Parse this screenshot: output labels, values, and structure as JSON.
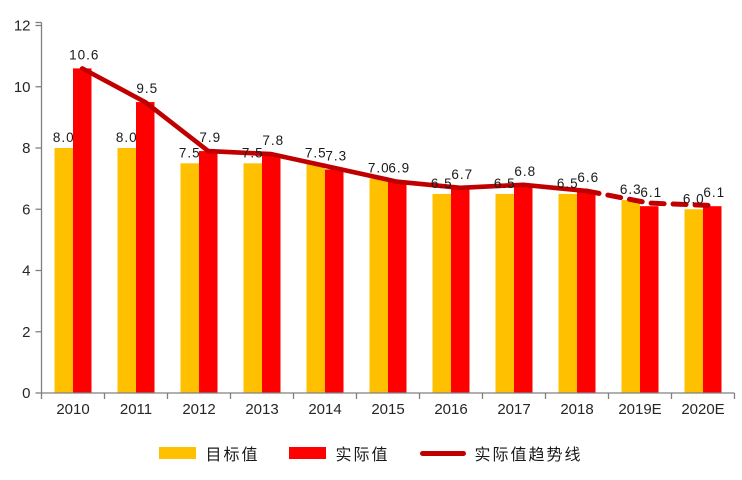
{
  "chart_data": {
    "type": "bar",
    "title": "",
    "categories": [
      "2010",
      "2011",
      "2012",
      "2013",
      "2014",
      "2015",
      "2016",
      "2017",
      "2018",
      "2019E",
      "2020E"
    ],
    "series": [
      {
        "name": "目标值",
        "color": "#FFC000",
        "values": [
          8.0,
          8.0,
          7.5,
          7.5,
          7.5,
          7.0,
          6.5,
          6.5,
          6.5,
          6.3,
          6.0
        ]
      },
      {
        "name": "实际值",
        "color": "#FF0000",
        "values": [
          10.6,
          9.5,
          7.9,
          7.8,
          7.3,
          6.9,
          6.7,
          6.8,
          6.6,
          6.1,
          6.1
        ]
      }
    ],
    "trendline": {
      "name": "实际值趋势线",
      "color": "#C00000",
      "values": [
        10.6,
        9.5,
        7.9,
        7.8,
        7.35,
        6.9,
        6.7,
        6.8,
        6.6,
        6.2,
        6.12
      ],
      "dashed_from_index": 8
    },
    "ylim": [
      0,
      12
    ],
    "yticks": [
      0,
      2,
      4,
      6,
      8,
      10,
      12
    ],
    "grid": false,
    "legend_position": "bottom",
    "value_labels": true,
    "label_decimals": 1,
    "axis_color": "#808080",
    "text_color": "#262626",
    "background": "#FFFFFF"
  }
}
